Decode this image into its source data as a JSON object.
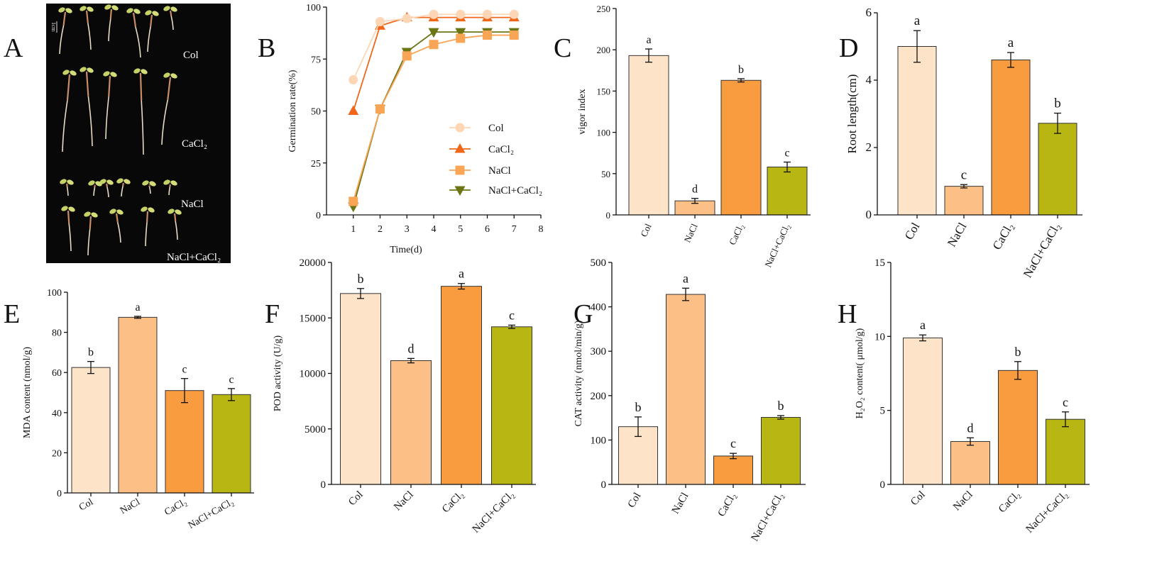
{
  "photo": {
    "panel": "A",
    "scale_bar": "1cm",
    "labels": {
      "col": "Col",
      "cacl2": "CaCl₂",
      "nacl": "NaCl",
      "mix": "NaCl+CaCl₂"
    }
  },
  "colors": {
    "col": "#fde3c8",
    "nacl": "#fcc087",
    "cacl2": "#f99b3f",
    "mix": "#b7b612",
    "line_col": "#fcd6b5",
    "line_cacl2": "#f0671a",
    "line_nacl": "#f8a556",
    "line_mix": "#6b7514",
    "photo_bg": "#080808"
  },
  "chart_data": [
    {
      "panel": "B",
      "type": "line",
      "xlabel": "Time(d)",
      "ylabel": "Germination rate(%)",
      "x": [
        1,
        2,
        3,
        4,
        5,
        6,
        7
      ],
      "xticks": [
        1,
        2,
        3,
        4,
        5,
        6,
        7,
        8
      ],
      "xlim": [
        0,
        8
      ],
      "ylim": [
        0,
        100
      ],
      "yticks": [
        0,
        25,
        50,
        75,
        100
      ],
      "series": [
        {
          "name": "Col",
          "values": [
            65,
            93,
            94.5,
            96.5,
            96.5,
            96.5,
            96.5
          ]
        },
        {
          "name": "CaCl₂",
          "values": [
            50,
            91,
            95,
            95,
            95,
            95,
            95
          ]
        },
        {
          "name": "NaCl",
          "values": [
            6.5,
            51,
            76.5,
            82,
            85,
            86.5,
            86.5
          ]
        },
        {
          "name": "NaCl+CaCl₂",
          "values": [
            4,
            51,
            78.5,
            88,
            88,
            88,
            88
          ]
        }
      ]
    },
    {
      "panel": "C",
      "type": "bar",
      "ylabel": "vigor index",
      "categories": [
        "Col",
        "NaCl",
        "CaCl₂",
        "NaCl+CaCl₂"
      ],
      "values": [
        193,
        17,
        163,
        58
      ],
      "errors": [
        8,
        3,
        2,
        6
      ],
      "letters": [
        "a",
        "d",
        "b",
        "c"
      ],
      "ylim": [
        0,
        250
      ],
      "yticks": [
        0,
        50,
        100,
        150,
        200,
        250
      ]
    },
    {
      "panel": "D",
      "type": "bar",
      "ylabel": "Root length(cm)",
      "categories": [
        "Col",
        "NaCl",
        "CaCl₂",
        "NaCl+CaCl₂"
      ],
      "values": [
        5.0,
        0.85,
        4.6,
        2.72
      ],
      "errors": [
        0.47,
        0.05,
        0.22,
        0.3
      ],
      "letters": [
        "a",
        "c",
        "a",
        "b"
      ],
      "ylim": [
        0,
        6
      ],
      "yticks": [
        0,
        2,
        4,
        6
      ]
    },
    {
      "panel": "E",
      "type": "bar",
      "ylabel": "MDA content (nmol/g)",
      "categories": [
        "Col",
        "NaCl",
        "CaCl₂",
        "NaCl+CaCl₂"
      ],
      "values": [
        62.5,
        87.5,
        51,
        49
      ],
      "errors": [
        3,
        0.5,
        6,
        3
      ],
      "letters": [
        "b",
        "a",
        "c",
        "c"
      ],
      "ylim": [
        0,
        100
      ],
      "yticks": [
        0,
        20,
        40,
        60,
        80,
        100
      ]
    },
    {
      "panel": "F",
      "type": "bar",
      "ylabel": "POD activity (U/g)",
      "categories": [
        "Col",
        "NaCl",
        "CaCl₂",
        "NaCl+CaCl₂"
      ],
      "values": [
        17200,
        11150,
        17850,
        14200
      ],
      "errors": [
        450,
        200,
        250,
        150
      ],
      "letters": [
        "b",
        "d",
        "a",
        "c"
      ],
      "ylim": [
        0,
        20000
      ],
      "yticks": [
        0,
        5000,
        10000,
        15000,
        20000
      ]
    },
    {
      "panel": "G",
      "type": "bar",
      "ylabel": "CAT activity (nmol/min/g)",
      "categories": [
        "Col",
        "NaCl",
        "CaCl₂",
        "NaCl+CaCl₂"
      ],
      "values": [
        130,
        428,
        64,
        151
      ],
      "errors": [
        22,
        14,
        6,
        4
      ],
      "letters": [
        "b",
        "a",
        "c",
        "b"
      ],
      "ylim": [
        0,
        500
      ],
      "yticks": [
        0,
        100,
        200,
        300,
        400,
        500
      ]
    },
    {
      "panel": "H",
      "type": "bar",
      "ylabel": "H₂O₂ content( μmol/g)",
      "categories": [
        "Col",
        "NaCl",
        "CaCl₂",
        "NaCl+CaCl₂"
      ],
      "values": [
        9.9,
        2.9,
        7.7,
        4.4
      ],
      "errors": [
        0.2,
        0.25,
        0.6,
        0.5
      ],
      "letters": [
        "a",
        "d",
        "b",
        "c"
      ],
      "ylim": [
        0,
        15
      ],
      "yticks": [
        0,
        5,
        10,
        15
      ]
    }
  ]
}
